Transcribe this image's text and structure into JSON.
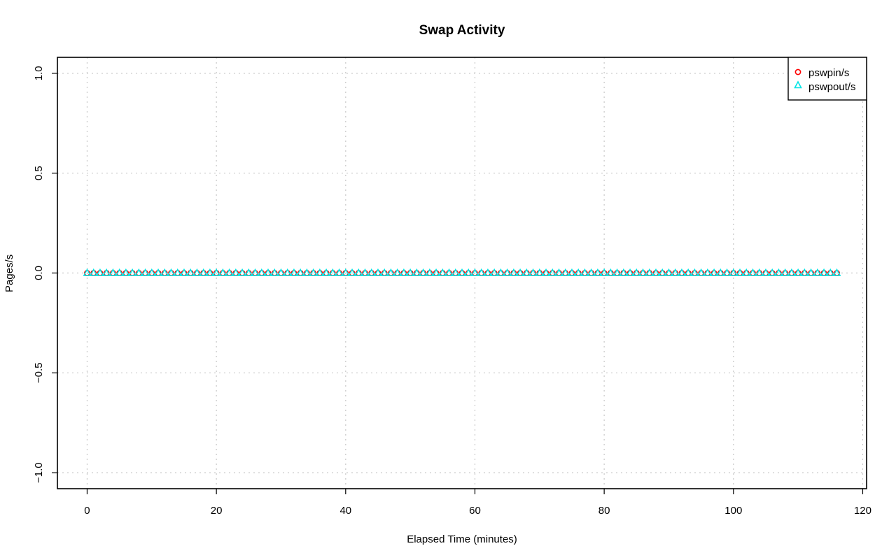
{
  "chart_data": {
    "type": "scatter",
    "title": "Swap Activity",
    "xlabel": "Elapsed Time (minutes)",
    "ylabel": "Pages/s",
    "xlim": [
      -4.6,
      120.6
    ],
    "ylim": [
      -1.08,
      1.08
    ],
    "x_ticks": [
      0,
      20,
      40,
      60,
      80,
      100,
      120
    ],
    "x_tick_labels": [
      "0",
      "20",
      "40",
      "60",
      "80",
      "100",
      "120"
    ],
    "y_ticks": [
      -1.0,
      -0.5,
      0.0,
      0.5,
      1.0
    ],
    "y_tick_labels": [
      "−1.0",
      "−0.5",
      "0.0",
      "0.5",
      "1.0"
    ],
    "grid": true,
    "legend_position": "top-right",
    "x_start": 0,
    "x_end": 116,
    "x_step": 1,
    "series": [
      {
        "name": "pswpin/s",
        "marker": "circle",
        "color": "#ff0000",
        "constant_value": 0
      },
      {
        "name": "pswpout/s",
        "marker": "triangle",
        "color": "#00e5e5",
        "constant_value": 0
      }
    ]
  }
}
